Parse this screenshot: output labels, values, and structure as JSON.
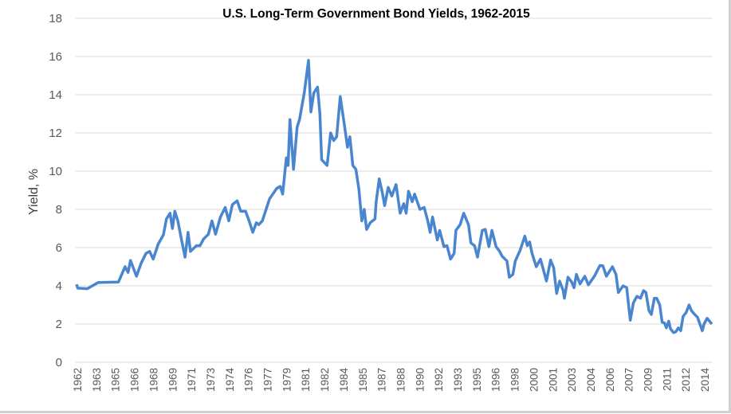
{
  "chart_data": {
    "type": "line",
    "title": "U.S. Long-Term Government Bond Yields, 1962-2015",
    "xlabel": "",
    "ylabel": "Yield, %",
    "ylim": [
      0,
      18
    ],
    "yticks": [
      0,
      2,
      4,
      6,
      8,
      10,
      12,
      14,
      16,
      18
    ],
    "xlim": [
      1962.0,
      2015.0
    ],
    "xtick_labels": [
      "1962",
      "1963",
      "1965",
      "1966",
      "1968",
      "1969",
      "1971",
      "1973",
      "1974",
      "1976",
      "1977",
      "1979",
      "1981",
      "1982",
      "1984",
      "1985",
      "1987",
      "1988",
      "1990",
      "1992",
      "1993",
      "1995",
      "1996",
      "1998",
      "2000",
      "2001",
      "2003",
      "2004",
      "2006",
      "2007",
      "2009",
      "2011",
      "2012",
      "2014"
    ],
    "grid": "horizontal",
    "legend": "none",
    "line_color": "#4a86d0",
    "series": [
      {
        "x": [
          1962.0,
          1962.1,
          1962.9,
          1963.8,
          1965.5,
          1966.05,
          1966.3,
          1966.5,
          1967.0,
          1967.4,
          1967.8,
          1968.1,
          1968.4,
          1968.8,
          1969.25,
          1969.5,
          1969.8,
          1970.0,
          1970.2,
          1970.45,
          1970.7,
          1971.05,
          1971.3,
          1971.5,
          1972.0,
          1972.3,
          1972.6,
          1973.0,
          1973.3,
          1973.6,
          1974.0,
          1974.4,
          1974.7,
          1975.0,
          1975.4,
          1975.7,
          1976.1,
          1976.4,
          1976.7,
          1977.0,
          1977.2,
          1977.5,
          1978.1,
          1978.7,
          1979.0,
          1979.2,
          1979.5,
          1979.65,
          1979.8,
          1980.1,
          1980.4,
          1980.6,
          1980.8,
          1981.0,
          1981.35,
          1981.55,
          1981.8,
          1982.1,
          1982.3,
          1982.45,
          1982.9,
          1983.2,
          1983.45,
          1983.7,
          1984.0,
          1984.35,
          1984.6,
          1984.8,
          1985.05,
          1985.3,
          1985.55,
          1985.8,
          1986.0,
          1986.2,
          1986.5,
          1986.9,
          1987.0,
          1987.25,
          1987.5,
          1987.7,
          1988.0,
          1988.3,
          1988.65,
          1989.0,
          1989.3,
          1989.5,
          1989.7,
          1990.0,
          1990.2,
          1990.65,
          1991.0,
          1991.3,
          1991.5,
          1991.7,
          1992.1,
          1992.3,
          1992.65,
          1992.9,
          1993.2,
          1993.5,
          1993.65,
          1994.0,
          1994.3,
          1994.7,
          1994.9,
          1995.2,
          1995.45,
          1995.85,
          1996.1,
          1996.4,
          1996.65,
          1997.0,
          1997.3,
          1997.5,
          1997.9,
          1998.1,
          1998.4,
          1998.6,
          1999.0,
          1999.4,
          1999.6,
          1999.8,
          2000.0,
          2000.35,
          2000.7,
          2001.2,
          2001.55,
          2001.8,
          2002.05,
          2002.3,
          2002.6,
          2002.7,
          2003.0,
          2003.3,
          2003.5,
          2003.7,
          2004.0,
          2004.4,
          2004.7,
          2005.2,
          2005.65,
          2005.9,
          2006.2,
          2006.5,
          2006.7,
          2007.0,
          2007.2,
          2007.6,
          2007.9,
          2008.0,
          2008.2,
          2008.45,
          2008.75,
          2009.05,
          2009.3,
          2009.5,
          2009.75,
          2009.95,
          2010.2,
          2010.4,
          2010.65,
          2010.85,
          2011.05,
          2011.2,
          2011.4,
          2011.55,
          2011.8,
          2012.0,
          2012.2,
          2012.4,
          2012.6,
          2012.85,
          2013.1,
          2013.3,
          2013.5,
          2013.8,
          2014.2,
          2014.35,
          2014.6,
          2015.0
        ],
        "y": [
          4.08,
          3.88,
          3.85,
          4.17,
          4.2,
          5.0,
          4.7,
          5.33,
          4.5,
          5.2,
          5.7,
          5.8,
          5.4,
          6.17,
          6.67,
          7.5,
          7.8,
          7.0,
          7.9,
          7.4,
          6.6,
          5.5,
          6.8,
          5.8,
          6.1,
          6.1,
          6.45,
          6.7,
          7.4,
          6.7,
          7.6,
          8.1,
          7.4,
          8.25,
          8.45,
          7.9,
          7.9,
          7.4,
          6.8,
          7.3,
          7.2,
          7.4,
          8.55,
          9.1,
          9.2,
          8.8,
          10.7,
          10.3,
          12.7,
          10.1,
          12.3,
          12.7,
          13.4,
          14.1,
          15.8,
          13.1,
          14.1,
          14.4,
          13.0,
          10.6,
          10.3,
          12.0,
          11.6,
          11.8,
          13.9,
          12.4,
          11.25,
          11.8,
          10.3,
          10.1,
          9.1,
          7.4,
          8.0,
          6.95,
          7.3,
          7.5,
          8.4,
          9.6,
          8.9,
          8.2,
          9.15,
          8.7,
          9.3,
          7.8,
          8.3,
          7.8,
          8.95,
          8.4,
          8.8,
          8.0,
          8.1,
          7.4,
          6.8,
          7.6,
          6.4,
          6.9,
          6.05,
          6.1,
          5.4,
          5.7,
          6.9,
          7.2,
          7.8,
          7.2,
          6.25,
          6.1,
          5.5,
          6.9,
          6.95,
          6.05,
          6.9,
          6.05,
          5.8,
          5.55,
          5.3,
          4.45,
          4.6,
          5.3,
          5.85,
          6.6,
          6.1,
          6.3,
          5.7,
          5.0,
          5.4,
          4.25,
          5.35,
          4.95,
          3.6,
          4.25,
          3.75,
          3.35,
          4.45,
          4.2,
          3.9,
          4.6,
          4.1,
          4.5,
          4.05,
          4.5,
          5.05,
          5.05,
          4.5,
          4.8,
          5.0,
          4.6,
          3.65,
          4.0,
          3.9,
          3.3,
          2.2,
          3.1,
          3.45,
          3.35,
          3.75,
          3.65,
          2.7,
          2.5,
          3.35,
          3.35,
          3.0,
          2.1,
          2.05,
          1.8,
          2.15,
          1.75,
          1.55,
          1.6,
          1.8,
          1.65,
          2.4,
          2.6,
          3.0,
          2.7,
          2.55,
          2.35,
          1.65,
          2.0,
          2.3,
          2.0
        ]
      }
    ]
  }
}
